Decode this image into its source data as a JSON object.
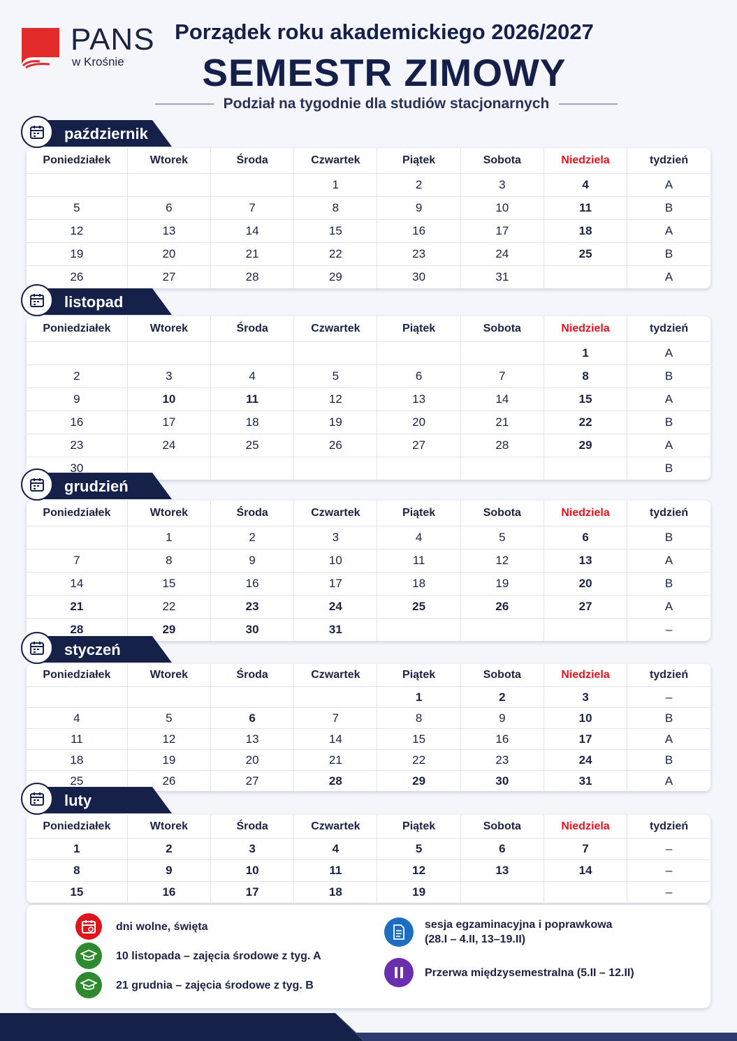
{
  "header": {
    "logo_name": "PANS",
    "logo_sub": "w Krośnie",
    "title_line1": "Porządek roku akademickiego 2026/2027",
    "title_line2": "SEMESTR ZIMOWY",
    "subtitle": "Podział na tygodnie dla studiów stacjonarnych"
  },
  "colors": {
    "navy": "#16214a",
    "holiday_red": "#e0141e",
    "makeup_green": "#2e8a2e",
    "exam_blue": "#1d6ec2",
    "break_purple": "#6a2fb0"
  },
  "columns": [
    "Poniedziałek",
    "Wtorek",
    "Środa",
    "Czwartek",
    "Piątek",
    "Sobota",
    "Niedziela",
    "tydzień"
  ],
  "months": [
    {
      "name": "październik",
      "icon": "calendar-icon",
      "rows": [
        [
          {
            "v": ""
          },
          {
            "v": ""
          },
          {
            "v": ""
          },
          {
            "v": "1"
          },
          {
            "v": "2"
          },
          {
            "v": "3"
          },
          {
            "v": "4",
            "s": "red"
          },
          {
            "v": "A"
          }
        ],
        [
          {
            "v": "5"
          },
          {
            "v": "6"
          },
          {
            "v": "7"
          },
          {
            "v": "8"
          },
          {
            "v": "9"
          },
          {
            "v": "10"
          },
          {
            "v": "11",
            "s": "red"
          },
          {
            "v": "B"
          }
        ],
        [
          {
            "v": "12"
          },
          {
            "v": "13"
          },
          {
            "v": "14"
          },
          {
            "v": "15"
          },
          {
            "v": "16"
          },
          {
            "v": "17"
          },
          {
            "v": "18",
            "s": "red"
          },
          {
            "v": "A"
          }
        ],
        [
          {
            "v": "19"
          },
          {
            "v": "20"
          },
          {
            "v": "21"
          },
          {
            "v": "22"
          },
          {
            "v": "23"
          },
          {
            "v": "24"
          },
          {
            "v": "25",
            "s": "red"
          },
          {
            "v": "B"
          }
        ],
        [
          {
            "v": "26"
          },
          {
            "v": "27"
          },
          {
            "v": "28"
          },
          {
            "v": "29"
          },
          {
            "v": "30"
          },
          {
            "v": "31"
          },
          {
            "v": ""
          },
          {
            "v": "A"
          }
        ]
      ]
    },
    {
      "name": "listopad",
      "icon": "calendar-icon",
      "rows": [
        [
          {
            "v": ""
          },
          {
            "v": ""
          },
          {
            "v": ""
          },
          {
            "v": ""
          },
          {
            "v": ""
          },
          {
            "v": ""
          },
          {
            "v": "1",
            "s": "red"
          },
          {
            "v": "A"
          }
        ],
        [
          {
            "v": "2"
          },
          {
            "v": "3"
          },
          {
            "v": "4"
          },
          {
            "v": "5"
          },
          {
            "v": "6"
          },
          {
            "v": "7"
          },
          {
            "v": "8",
            "s": "red"
          },
          {
            "v": "B"
          }
        ],
        [
          {
            "v": "9"
          },
          {
            "v": "10",
            "s": "green"
          },
          {
            "v": "11",
            "s": "red"
          },
          {
            "v": "12"
          },
          {
            "v": "13"
          },
          {
            "v": "14"
          },
          {
            "v": "15",
            "s": "red"
          },
          {
            "v": "A"
          }
        ],
        [
          {
            "v": "16"
          },
          {
            "v": "17"
          },
          {
            "v": "18"
          },
          {
            "v": "19"
          },
          {
            "v": "20"
          },
          {
            "v": "21"
          },
          {
            "v": "22",
            "s": "red"
          },
          {
            "v": "B"
          }
        ],
        [
          {
            "v": "23"
          },
          {
            "v": "24"
          },
          {
            "v": "25"
          },
          {
            "v": "26"
          },
          {
            "v": "27"
          },
          {
            "v": "28"
          },
          {
            "v": "29",
            "s": "red"
          },
          {
            "v": "A"
          }
        ],
        [
          {
            "v": "30"
          },
          {
            "v": ""
          },
          {
            "v": ""
          },
          {
            "v": ""
          },
          {
            "v": ""
          },
          {
            "v": ""
          },
          {
            "v": ""
          },
          {
            "v": "B"
          }
        ]
      ]
    },
    {
      "name": "grudzień",
      "icon": "calendar-icon",
      "rows": [
        [
          {
            "v": ""
          },
          {
            "v": "1"
          },
          {
            "v": "2"
          },
          {
            "v": "3"
          },
          {
            "v": "4"
          },
          {
            "v": "5"
          },
          {
            "v": "6",
            "s": "red"
          },
          {
            "v": "B"
          }
        ],
        [
          {
            "v": "7"
          },
          {
            "v": "8"
          },
          {
            "v": "9"
          },
          {
            "v": "10"
          },
          {
            "v": "11"
          },
          {
            "v": "12"
          },
          {
            "v": "13",
            "s": "red"
          },
          {
            "v": "A"
          }
        ],
        [
          {
            "v": "14"
          },
          {
            "v": "15"
          },
          {
            "v": "16"
          },
          {
            "v": "17"
          },
          {
            "v": "18"
          },
          {
            "v": "19"
          },
          {
            "v": "20",
            "s": "red"
          },
          {
            "v": "B"
          }
        ],
        [
          {
            "v": "21",
            "s": "green"
          },
          {
            "v": "22"
          },
          {
            "v": "23",
            "s": "red"
          },
          {
            "v": "24",
            "s": "red"
          },
          {
            "v": "25",
            "s": "red"
          },
          {
            "v": "26",
            "s": "red"
          },
          {
            "v": "27",
            "s": "red"
          },
          {
            "v": "A"
          }
        ],
        [
          {
            "v": "28",
            "s": "red"
          },
          {
            "v": "29",
            "s": "red"
          },
          {
            "v": "30",
            "s": "red"
          },
          {
            "v": "31",
            "s": "red"
          },
          {
            "v": ""
          },
          {
            "v": ""
          },
          {
            "v": ""
          },
          {
            "v": "–"
          }
        ]
      ]
    },
    {
      "name": "styczeń",
      "icon": "calendar-icon",
      "rows": [
        [
          {
            "v": ""
          },
          {
            "v": ""
          },
          {
            "v": ""
          },
          {
            "v": ""
          },
          {
            "v": "1",
            "s": "red"
          },
          {
            "v": "2",
            "s": "red"
          },
          {
            "v": "3",
            "s": "red"
          },
          {
            "v": "–"
          }
        ],
        [
          {
            "v": "4"
          },
          {
            "v": "5"
          },
          {
            "v": "6",
            "s": "red"
          },
          {
            "v": "7"
          },
          {
            "v": "8"
          },
          {
            "v": "9"
          },
          {
            "v": "10",
            "s": "red"
          },
          {
            "v": "B"
          }
        ],
        [
          {
            "v": "11"
          },
          {
            "v": "12"
          },
          {
            "v": "13"
          },
          {
            "v": "14"
          },
          {
            "v": "15"
          },
          {
            "v": "16"
          },
          {
            "v": "17",
            "s": "red"
          },
          {
            "v": "A"
          }
        ],
        [
          {
            "v": "18"
          },
          {
            "v": "19"
          },
          {
            "v": "20"
          },
          {
            "v": "21"
          },
          {
            "v": "22"
          },
          {
            "v": "23"
          },
          {
            "v": "24",
            "s": "red"
          },
          {
            "v": "B"
          }
        ],
        [
          {
            "v": "25"
          },
          {
            "v": "26"
          },
          {
            "v": "27"
          },
          {
            "v": "28",
            "s": "blue"
          },
          {
            "v": "29",
            "s": "blue"
          },
          {
            "v": "30",
            "s": "blue"
          },
          {
            "v": "31",
            "s": "blue"
          },
          {
            "v": "A"
          }
        ]
      ]
    },
    {
      "name": "luty",
      "icon": "calendar-icon",
      "rows": [
        [
          {
            "v": "1",
            "s": "blue"
          },
          {
            "v": "2",
            "s": "blue"
          },
          {
            "v": "3",
            "s": "blue"
          },
          {
            "v": "4",
            "s": "blue"
          },
          {
            "v": "5",
            "s": "purple"
          },
          {
            "v": "6",
            "s": "purple"
          },
          {
            "v": "7",
            "s": "purple"
          },
          {
            "v": "–"
          }
        ],
        [
          {
            "v": "8",
            "s": "purple"
          },
          {
            "v": "9",
            "s": "purple"
          },
          {
            "v": "10",
            "s": "purple"
          },
          {
            "v": "11",
            "s": "purple"
          },
          {
            "v": "12",
            "s": "purple"
          },
          {
            "v": "13",
            "s": "blue"
          },
          {
            "v": "14",
            "s": "blue"
          },
          {
            "v": "–"
          }
        ],
        [
          {
            "v": "15",
            "s": "blue"
          },
          {
            "v": "16",
            "s": "blue"
          },
          {
            "v": "17",
            "s": "blue"
          },
          {
            "v": "18",
            "s": "blue"
          },
          {
            "v": "19",
            "s": "blue"
          },
          {
            "v": ""
          },
          {
            "v": ""
          },
          {
            "v": "–"
          }
        ]
      ]
    }
  ],
  "legend": {
    "holidays": "dni wolne, święta",
    "nov10": "10 listopada – zajęcia środowe z tyg. A",
    "dec21": "21 grudnia – zajęcia środowe z tyg. B",
    "exam_line1": "sesja egzaminacyjna i poprawkowa",
    "exam_line2": "(28.I – 4.II, 13–19.II)",
    "break": "Przerwa międzysemestralna (5.II – 12.II)"
  }
}
